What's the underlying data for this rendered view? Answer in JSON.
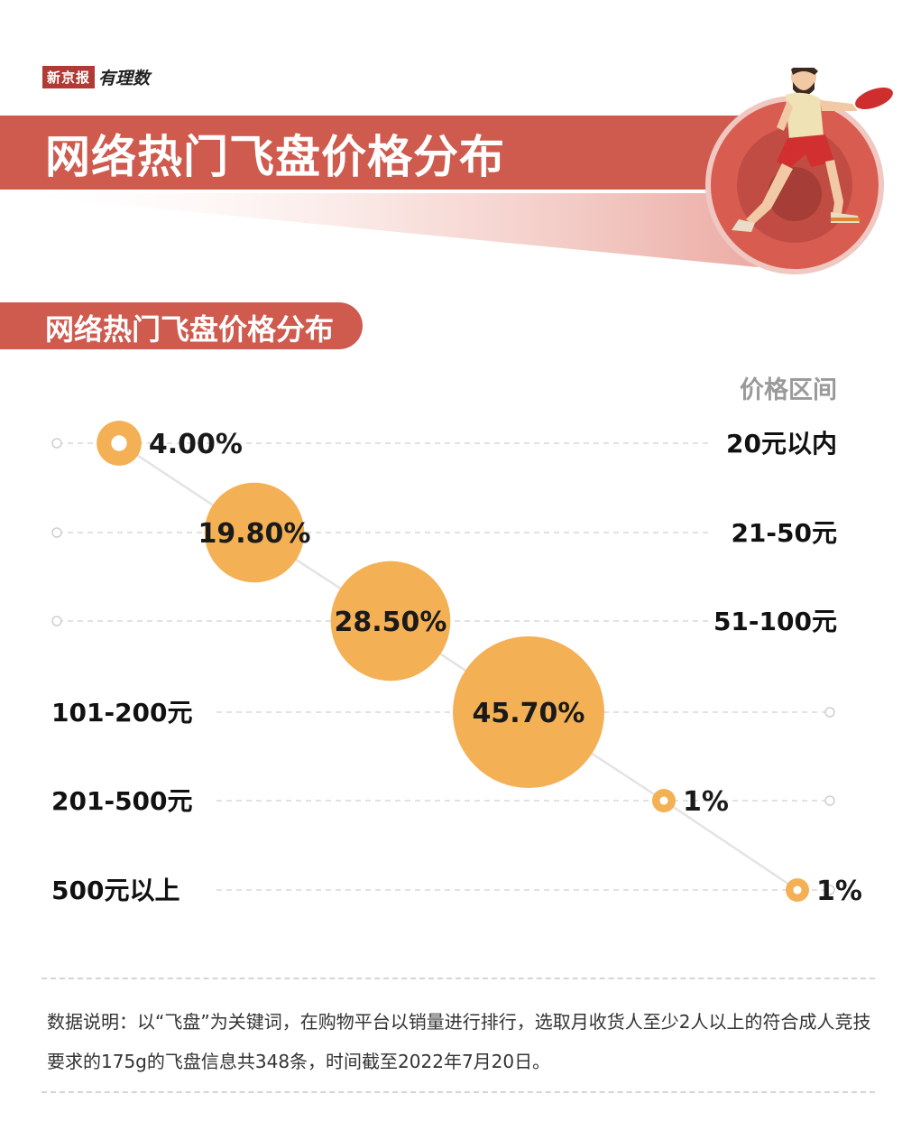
{
  "brand": {
    "logo_box": "新京报",
    "logo_script": "有理数"
  },
  "banner_title": "网络热门飞盘价格分布",
  "section_title": "网络热门飞盘价格分布",
  "range_header": "价格区间",
  "colors": {
    "brand_red": "#cf5a4e",
    "bubble": "#f4b054",
    "illustration_circle": "#d85d50"
  },
  "chart_data": {
    "type": "scatter",
    "title": "网络热门飞盘价格分布",
    "categories": [
      "20元以内",
      "21-50元",
      "51-100元",
      "101-200元",
      "201-500元",
      "500元以上"
    ],
    "values": [
      4.0,
      19.8,
      28.5,
      45.7,
      1,
      1
    ],
    "value_labels": [
      "4.00%",
      "19.80%",
      "28.50%",
      "45.70%",
      "1%",
      "1%"
    ],
    "unit": "%",
    "category_axis_title": "价格区间",
    "grid": true,
    "legend": "none"
  },
  "note": "数据说明：以“飞盘”为关键词，在购物平台以销量进行排行，选取月收货人至少2人以上的符合成人竞技要求的175g的飞盘信息共348条，时间截至2022年7月20日。"
}
